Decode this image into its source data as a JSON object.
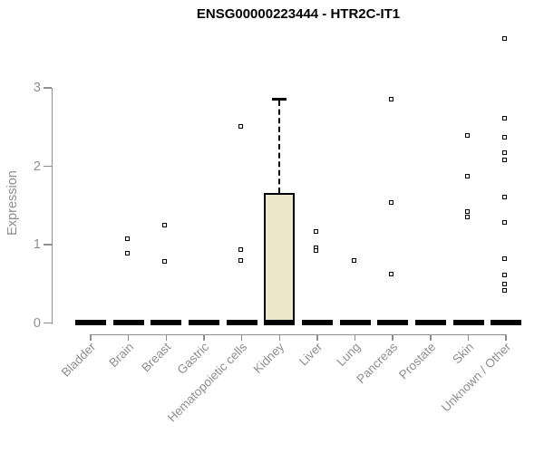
{
  "chart_data": {
    "type": "boxplot",
    "title": "ENSG00000223444 - HTR2C-IT1",
    "ylabel": "Expression",
    "xlabel": "",
    "ylim": [
      0,
      3
    ],
    "yticks": [
      0,
      1,
      2,
      3
    ],
    "grid": false,
    "legend": false,
    "axis_color": "#8f8f8f",
    "box_fill_color": "#ece7ca",
    "box_border_color": "#000000",
    "point_color": "#000000",
    "categories": [
      "Bladder",
      "Brain",
      "Breast",
      "Gastric",
      "Hematopoietic cells",
      "Kidney",
      "Liver",
      "Lung",
      "Pancreas",
      "Prostate",
      "Skin",
      "Unknown / Other"
    ],
    "groups": [
      {
        "label": "Bladder",
        "median": 0,
        "box": null,
        "points": []
      },
      {
        "label": "Brain",
        "median": 0,
        "box": null,
        "points": [
          1.08,
          0.89
        ]
      },
      {
        "label": "Breast",
        "median": 0,
        "box": null,
        "points": [
          1.25,
          0.79
        ]
      },
      {
        "label": "Gastric",
        "median": 0,
        "box": null,
        "points": []
      },
      {
        "label": "Hematopoietic cells",
        "median": 0,
        "box": null,
        "points": [
          2.51,
          0.94,
          0.8
        ]
      },
      {
        "label": "Kidney",
        "median": 0,
        "box": {
          "q1": 0,
          "median": 0,
          "q3": 1.66,
          "whisker_high": 2.86
        },
        "points": []
      },
      {
        "label": "Liver",
        "median": 0,
        "box": null,
        "points": [
          1.17,
          0.96,
          0.93
        ]
      },
      {
        "label": "Lung",
        "median": 0,
        "box": null,
        "points": [
          0.8
        ]
      },
      {
        "label": "Pancreas",
        "median": 0,
        "box": null,
        "points": [
          2.86,
          1.54,
          0.63
        ]
      },
      {
        "label": "Prostate",
        "median": 0,
        "box": null,
        "points": []
      },
      {
        "label": "Skin",
        "median": 0,
        "box": null,
        "points": [
          2.4,
          1.87,
          1.43,
          1.36
        ]
      },
      {
        "label": "Unknown / Other",
        "median": 0,
        "box": null,
        "points": [
          3.63,
          2.62,
          2.37,
          2.17,
          2.08,
          1.61,
          1.29,
          0.82,
          0.62,
          0.5,
          0.42
        ]
      }
    ]
  }
}
